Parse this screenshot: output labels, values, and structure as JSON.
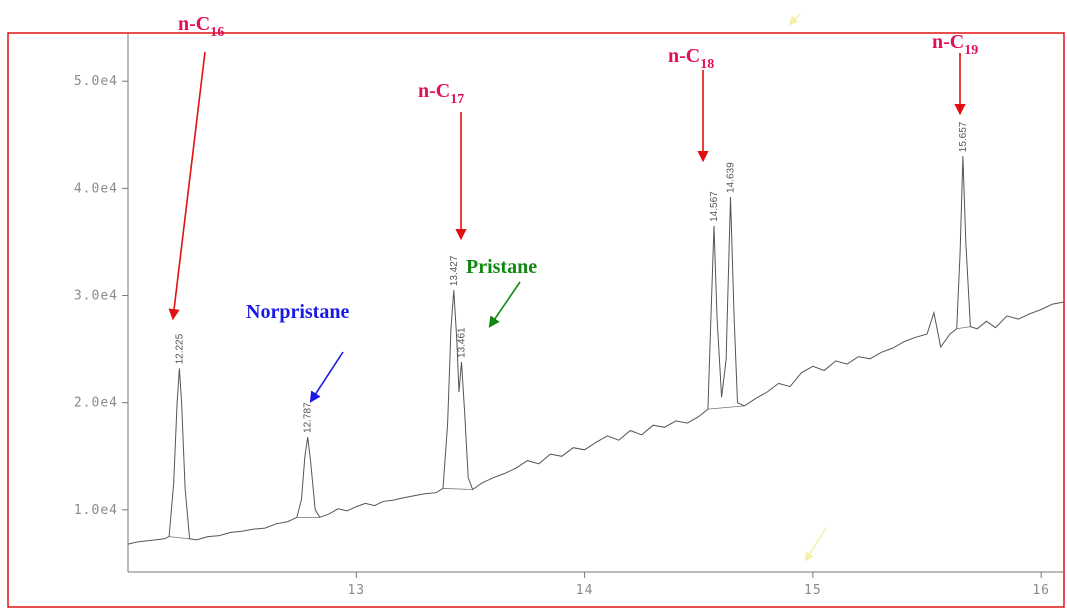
{
  "chart_data": {
    "type": "line",
    "title": "",
    "xlabel": "",
    "ylabel": "",
    "xlim": [
      12.0,
      16.1
    ],
    "ylim": [
      4200,
      54500
    ],
    "xticks": [
      {
        "value": 13,
        "label": "13"
      },
      {
        "value": 14,
        "label": "14"
      },
      {
        "value": 15,
        "label": "15"
      },
      {
        "value": 16,
        "label": "16"
      }
    ],
    "yticks": [
      {
        "value": 10000,
        "label": "1.0e4"
      },
      {
        "value": 20000,
        "label": "2.0e4"
      },
      {
        "value": 30000,
        "label": "3.0e4"
      },
      {
        "value": 40000,
        "label": "4.0e4"
      },
      {
        "value": 50000,
        "label": "5.0e4"
      }
    ],
    "grid": false,
    "legend": "none",
    "colors": {
      "trace": "#555555",
      "frame": "#e01010",
      "n_alkane_label": "#e0105a",
      "n_alkane_arrow": "#e01010",
      "norpristane": "#1a1ae6",
      "pristane": "#118811",
      "faint_arrow": "#f3f0a8"
    },
    "series": [
      {
        "points": [
          [
            12.0,
            6800
          ],
          [
            12.04,
            7000
          ],
          [
            12.08,
            7100
          ],
          [
            12.12,
            7200
          ],
          [
            12.16,
            7300
          ],
          [
            12.18,
            7500
          ],
          [
            12.2,
            12500
          ],
          [
            12.215,
            20000
          ],
          [
            12.225,
            23200
          ],
          [
            12.235,
            20000
          ],
          [
            12.25,
            12000
          ],
          [
            12.27,
            7300
          ],
          [
            12.3,
            7200
          ],
          [
            12.35,
            7500
          ],
          [
            12.4,
            7600
          ],
          [
            12.45,
            7900
          ],
          [
            12.5,
            8000
          ],
          [
            12.55,
            8200
          ],
          [
            12.6,
            8300
          ],
          [
            12.65,
            8700
          ],
          [
            12.7,
            8900
          ],
          [
            12.74,
            9300
          ],
          [
            12.76,
            11000
          ],
          [
            12.775,
            15000
          ],
          [
            12.787,
            16800
          ],
          [
            12.8,
            14500
          ],
          [
            12.82,
            10000
          ],
          [
            12.84,
            9300
          ],
          [
            12.88,
            9600
          ],
          [
            12.92,
            10100
          ],
          [
            12.96,
            9900
          ],
          [
            13.0,
            10300
          ],
          [
            13.04,
            10600
          ],
          [
            13.08,
            10400
          ],
          [
            13.12,
            10800
          ],
          [
            13.16,
            10900
          ],
          [
            13.2,
            11100
          ],
          [
            13.25,
            11300
          ],
          [
            13.3,
            11500
          ],
          [
            13.35,
            11600
          ],
          [
            13.38,
            12000
          ],
          [
            13.4,
            18000
          ],
          [
            13.415,
            27000
          ],
          [
            13.427,
            30500
          ],
          [
            13.44,
            26000
          ],
          [
            13.45,
            21000
          ],
          [
            13.461,
            23800
          ],
          [
            13.475,
            19000
          ],
          [
            13.49,
            13000
          ],
          [
            13.51,
            11900
          ],
          [
            13.55,
            12500
          ],
          [
            13.6,
            13000
          ],
          [
            13.65,
            13400
          ],
          [
            13.7,
            13900
          ],
          [
            13.75,
            14600
          ],
          [
            13.8,
            14300
          ],
          [
            13.85,
            15200
          ],
          [
            13.9,
            15000
          ],
          [
            13.95,
            15800
          ],
          [
            14.0,
            15600
          ],
          [
            14.05,
            16300
          ],
          [
            14.1,
            16900
          ],
          [
            14.15,
            16500
          ],
          [
            14.2,
            17400
          ],
          [
            14.25,
            17000
          ],
          [
            14.3,
            17900
          ],
          [
            14.35,
            17700
          ],
          [
            14.4,
            18300
          ],
          [
            14.45,
            18100
          ],
          [
            14.5,
            18700
          ],
          [
            14.54,
            19400
          ],
          [
            14.555,
            29000
          ],
          [
            14.567,
            36500
          ],
          [
            14.58,
            28000
          ],
          [
            14.6,
            20500
          ],
          [
            14.62,
            24000
          ],
          [
            14.639,
            39200
          ],
          [
            14.655,
            28000
          ],
          [
            14.67,
            20000
          ],
          [
            14.7,
            19700
          ],
          [
            14.75,
            20400
          ],
          [
            14.8,
            21000
          ],
          [
            14.85,
            21800
          ],
          [
            14.9,
            21500
          ],
          [
            14.95,
            22800
          ],
          [
            15.0,
            23400
          ],
          [
            15.05,
            23000
          ],
          [
            15.1,
            23900
          ],
          [
            15.15,
            23600
          ],
          [
            15.2,
            24300
          ],
          [
            15.25,
            24100
          ],
          [
            15.3,
            24700
          ],
          [
            15.35,
            25100
          ],
          [
            15.4,
            25700
          ],
          [
            15.45,
            26100
          ],
          [
            15.5,
            26400
          ],
          [
            15.53,
            28400
          ],
          [
            15.56,
            25200
          ],
          [
            15.6,
            26400
          ],
          [
            15.63,
            26900
          ],
          [
            15.645,
            34000
          ],
          [
            15.657,
            43000
          ],
          [
            15.67,
            35000
          ],
          [
            15.69,
            27100
          ],
          [
            15.72,
            26900
          ],
          [
            15.76,
            27600
          ],
          [
            15.8,
            27000
          ],
          [
            15.85,
            28100
          ],
          [
            15.9,
            27800
          ],
          [
            15.95,
            28300
          ],
          [
            16.0,
            28700
          ],
          [
            16.05,
            29200
          ],
          [
            16.1,
            29400
          ]
        ]
      }
    ],
    "peaks": [
      {
        "x": 12.225,
        "y": 23200,
        "label": "12.225"
      },
      {
        "x": 12.787,
        "y": 16800,
        "label": "12.787"
      },
      {
        "x": 13.427,
        "y": 30500,
        "label": "13.427"
      },
      {
        "x": 13.461,
        "y": 23800,
        "label": "13.461"
      },
      {
        "x": 14.567,
        "y": 36500,
        "label": "14.567"
      },
      {
        "x": 14.639,
        "y": 39200,
        "label": "14.639"
      },
      {
        "x": 15.657,
        "y": 43000,
        "label": "15.657"
      }
    ],
    "annotations": [
      {
        "name": "n-c16",
        "label": "n-C",
        "sub": "16",
        "color_key": "n_alkane_label",
        "arrow_color_key": "n_alkane_arrow",
        "target": [
          12.225,
          23200
        ]
      },
      {
        "name": "n-c17",
        "label": "n-C",
        "sub": "17",
        "color_key": "n_alkane_label",
        "arrow_color_key": "n_alkane_arrow",
        "target": [
          13.44,
          33000
        ]
      },
      {
        "name": "n-c18",
        "label": "n-C",
        "sub": "18",
        "color_key": "n_alkane_label",
        "arrow_color_key": "n_alkane_arrow",
        "target": [
          14.54,
          37500
        ]
      },
      {
        "name": "n-c19",
        "label": "n-C",
        "sub": "19",
        "color_key": "n_alkane_label",
        "arrow_color_key": "n_alkane_arrow",
        "target": [
          15.657,
          44500
        ]
      },
      {
        "name": "norpristane",
        "label": "Norpristane",
        "sub": "",
        "color_key": "norpristane",
        "arrow_color_key": "norpristane",
        "target": [
          12.76,
          19000
        ]
      },
      {
        "name": "pristane",
        "label": "Pristane",
        "sub": "",
        "color_key": "pristane",
        "arrow_color_key": "pristane",
        "target": [
          13.55,
          27000
        ]
      }
    ]
  }
}
